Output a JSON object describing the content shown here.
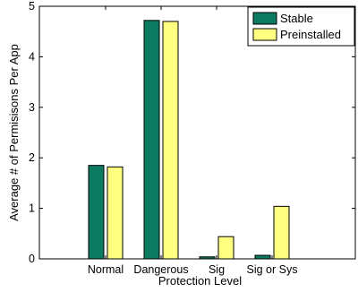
{
  "chart_data": {
    "type": "bar",
    "title": "",
    "xlabel": "Protection Level",
    "ylabel": "Average # of Permisisons Per App",
    "categories": [
      "Normal",
      "Dangerous",
      "Sig",
      "Sig or Sys"
    ],
    "series": [
      {
        "name": "Stable",
        "values": [
          1.85,
          4.72,
          0.04,
          0.07
        ],
        "color": "#0b7a61"
      },
      {
        "name": "Preinstalled",
        "values": [
          1.82,
          4.7,
          0.44,
          1.04
        ],
        "color": "#ffff80"
      }
    ],
    "ylim": [
      0,
      5
    ],
    "yticks": [
      "0",
      "1",
      "2",
      "3",
      "4",
      "5"
    ],
    "grid": false,
    "legend_position": "top-right"
  }
}
